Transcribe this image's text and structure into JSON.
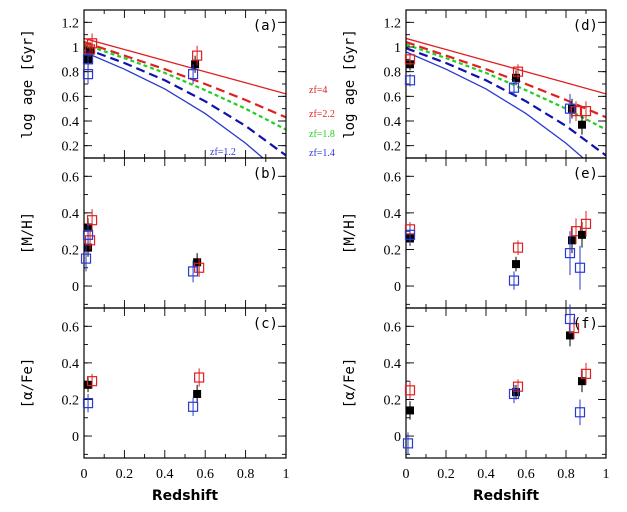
{
  "chart_data": {
    "type": "scatter",
    "colors": {
      "black": "#000000",
      "red": "#e02020",
      "blue": "#2a3ad0",
      "green": "#20d020",
      "darkblue": "#1010b0"
    },
    "xlabel": "Redshift",
    "xlim": [
      0,
      1
    ],
    "xticks": [
      0,
      0.2,
      0.4,
      0.6,
      0.8,
      1
    ],
    "xtick_labels": [
      "0",
      "0.2",
      "0.4",
      "0.6",
      "0.8",
      "1"
    ],
    "legend_series": [
      {
        "name": "filled black squares",
        "marker": "filled-square",
        "color": "black"
      },
      {
        "name": "open red squares",
        "marker": "open-square",
        "color": "red"
      },
      {
        "name": "open blue squares",
        "marker": "open-square",
        "color": "blue"
      }
    ],
    "rows": [
      {
        "key": "age",
        "ylabel": "log age [Gyr]",
        "ylim": [
          0.1,
          1.3
        ],
        "yticks": [
          0.2,
          0.4,
          0.6,
          0.8,
          1,
          1.2
        ],
        "ytick_labels": [
          "0.2",
          "0.4",
          "0.6",
          "0.8",
          "1",
          "1.2"
        ]
      },
      {
        "key": "mh",
        "ylabel": "[M/H]",
        "ylim": [
          -0.12,
          0.7
        ],
        "yticks": [
          0,
          0.2,
          0.4,
          0.6
        ],
        "ytick_labels": [
          "0",
          "0.2",
          "0.4",
          "0.6"
        ]
      },
      {
        "key": "afe",
        "ylabel": "[α/Fe]",
        "ylim": [
          -0.12,
          0.7
        ],
        "yticks": [
          0,
          0.2,
          0.4,
          0.6
        ],
        "ytick_labels": [
          "0",
          "0.2",
          "0.4",
          "0.6"
        ]
      }
    ],
    "formation_curves": [
      {
        "label": "z_f=4",
        "color": "red",
        "style": "solid",
        "values": [
          [
            0,
            1.07
          ],
          [
            0.2,
            0.98
          ],
          [
            0.4,
            0.89
          ],
          [
            0.6,
            0.8
          ],
          [
            0.8,
            0.71
          ],
          [
            1.0,
            0.62
          ]
        ]
      },
      {
        "label": "z_f=2.2",
        "color": "red",
        "style": "dashed",
        "values": [
          [
            0,
            1.04
          ],
          [
            0.2,
            0.93
          ],
          [
            0.4,
            0.82
          ],
          [
            0.6,
            0.7
          ],
          [
            0.8,
            0.57
          ],
          [
            1.0,
            0.43
          ]
        ]
      },
      {
        "label": "z_f=1.8",
        "color": "green",
        "style": "dashed",
        "values": [
          [
            0,
            1.02
          ],
          [
            0.2,
            0.91
          ],
          [
            0.4,
            0.79
          ],
          [
            0.6,
            0.65
          ],
          [
            0.8,
            0.5
          ],
          [
            1.0,
            0.33
          ]
        ]
      },
      {
        "label": "z_f=1.4",
        "color": "darkblue",
        "style": "dashed",
        "values": [
          [
            0,
            0.99
          ],
          [
            0.2,
            0.87
          ],
          [
            0.4,
            0.73
          ],
          [
            0.6,
            0.56
          ],
          [
            0.8,
            0.36
          ],
          [
            1.0,
            0.12
          ]
        ]
      },
      {
        "label": "z_f=1.2",
        "color": "blue",
        "style": "solid",
        "values": [
          [
            0,
            0.96
          ],
          [
            0.2,
            0.82
          ],
          [
            0.4,
            0.66
          ],
          [
            0.6,
            0.46
          ],
          [
            0.8,
            0.22
          ],
          [
            0.9,
            0.08
          ]
        ]
      }
    ],
    "curve_labels": [
      {
        "text": "zf=4",
        "color": "red"
      },
      {
        "text": "zf=2.2",
        "color": "red"
      },
      {
        "text": "zf=1.8",
        "color": "green"
      },
      {
        "text": "zf=1.4",
        "color": "blue"
      },
      {
        "text": "zf=1.2",
        "color": "blue"
      }
    ],
    "panels": [
      {
        "id": "a",
        "label": "(a)",
        "col": 0,
        "row": 0,
        "points": [
          {
            "series": "black",
            "x": 0.02,
            "y": 0.9,
            "err": 0.06
          },
          {
            "series": "black",
            "x": 0.03,
            "y": 0.97,
            "err": 0.07
          },
          {
            "series": "red",
            "x": 0.04,
            "y": 1.03,
            "err": 0.08
          },
          {
            "series": "red",
            "x": 0.03,
            "y": 0.98,
            "err": 0.06
          },
          {
            "series": "blue",
            "x": 0.02,
            "y": 0.78,
            "err": 0.08
          },
          {
            "series": "blue",
            "x": 0.02,
            "y": 0.9,
            "err": 0.07
          },
          {
            "series": "black",
            "x": 0.55,
            "y": 0.86,
            "err": 0.07
          },
          {
            "series": "red",
            "x": 0.56,
            "y": 0.93,
            "err": 0.08
          },
          {
            "series": "blue",
            "x": 0.54,
            "y": 0.78,
            "err": 0.08
          }
        ]
      },
      {
        "id": "b",
        "label": "(b)",
        "col": 0,
        "row": 1,
        "points": [
          {
            "series": "black",
            "x": 0.02,
            "y": 0.32,
            "err": 0.05
          },
          {
            "series": "black",
            "x": 0.02,
            "y": 0.21,
            "err": 0.05
          },
          {
            "series": "red",
            "x": 0.04,
            "y": 0.36,
            "err": 0.06
          },
          {
            "series": "red",
            "x": 0.03,
            "y": 0.25,
            "err": 0.05
          },
          {
            "series": "blue",
            "x": 0.01,
            "y": 0.15,
            "err": 0.07
          },
          {
            "series": "blue",
            "x": 0.02,
            "y": 0.28,
            "err": 0.06
          },
          {
            "series": "black",
            "x": 0.56,
            "y": 0.13,
            "err": 0.05
          },
          {
            "series": "red",
            "x": 0.57,
            "y": 0.1,
            "err": 0.05
          },
          {
            "series": "blue",
            "x": 0.54,
            "y": 0.08,
            "err": 0.06
          }
        ]
      },
      {
        "id": "c",
        "label": "(c)",
        "col": 0,
        "row": 2,
        "points": [
          {
            "series": "black",
            "x": 0.02,
            "y": 0.28,
            "err": 0.04
          },
          {
            "series": "red",
            "x": 0.04,
            "y": 0.3,
            "err": 0.04
          },
          {
            "series": "blue",
            "x": 0.02,
            "y": 0.18,
            "err": 0.05
          },
          {
            "series": "black",
            "x": 0.56,
            "y": 0.23,
            "err": 0.05
          },
          {
            "series": "red",
            "x": 0.57,
            "y": 0.32,
            "err": 0.05
          },
          {
            "series": "blue",
            "x": 0.54,
            "y": 0.16,
            "err": 0.05
          }
        ]
      },
      {
        "id": "d",
        "label": "(d)",
        "col": 1,
        "row": 0,
        "points": [
          {
            "series": "black",
            "x": 0.02,
            "y": 0.86,
            "err": 0.05
          },
          {
            "series": "red",
            "x": 0.02,
            "y": 0.9,
            "err": 0.05
          },
          {
            "series": "blue",
            "x": 0.02,
            "y": 0.73,
            "err": 0.05
          },
          {
            "series": "black",
            "x": 0.55,
            "y": 0.75,
            "err": 0.06
          },
          {
            "series": "red",
            "x": 0.56,
            "y": 0.8,
            "err": 0.06
          },
          {
            "series": "blue",
            "x": 0.54,
            "y": 0.67,
            "err": 0.07
          },
          {
            "series": "black",
            "x": 0.83,
            "y": 0.5,
            "err": 0.08
          },
          {
            "series": "red",
            "x": 0.85,
            "y": 0.48,
            "err": 0.08
          },
          {
            "series": "blue",
            "x": 0.82,
            "y": 0.5,
            "err": 0.12
          },
          {
            "series": "black",
            "x": 0.88,
            "y": 0.37,
            "err": 0.08
          },
          {
            "series": "red",
            "x": 0.9,
            "y": 0.48,
            "err": 0.08
          }
        ]
      },
      {
        "id": "e",
        "label": "(e)",
        "col": 1,
        "row": 1,
        "points": [
          {
            "series": "black",
            "x": 0.02,
            "y": 0.26,
            "err": 0.04
          },
          {
            "series": "red",
            "x": 0.02,
            "y": 0.31,
            "err": 0.04
          },
          {
            "series": "blue",
            "x": 0.02,
            "y": 0.28,
            "err": 0.05
          },
          {
            "series": "black",
            "x": 0.55,
            "y": 0.12,
            "err": 0.04
          },
          {
            "series": "red",
            "x": 0.56,
            "y": 0.21,
            "err": 0.04
          },
          {
            "series": "blue",
            "x": 0.54,
            "y": 0.03,
            "err": 0.05
          },
          {
            "series": "black",
            "x": 0.83,
            "y": 0.25,
            "err": 0.07
          },
          {
            "series": "red",
            "x": 0.85,
            "y": 0.3,
            "err": 0.07
          },
          {
            "series": "blue",
            "x": 0.82,
            "y": 0.18,
            "err": 0.12
          },
          {
            "series": "black",
            "x": 0.88,
            "y": 0.28,
            "err": 0.07
          },
          {
            "series": "red",
            "x": 0.9,
            "y": 0.34,
            "err": 0.07
          },
          {
            "series": "blue",
            "x": 0.87,
            "y": 0.1,
            "err": 0.12
          }
        ]
      },
      {
        "id": "f",
        "label": "(f)",
        "col": 1,
        "row": 2,
        "points": [
          {
            "series": "black",
            "x": 0.02,
            "y": 0.14,
            "err": 0.05
          },
          {
            "series": "red",
            "x": 0.02,
            "y": 0.25,
            "err": 0.05
          },
          {
            "series": "blue",
            "x": 0.01,
            "y": -0.04,
            "err": 0.06
          },
          {
            "series": "black",
            "x": 0.55,
            "y": 0.24,
            "err": 0.04
          },
          {
            "series": "red",
            "x": 0.56,
            "y": 0.27,
            "err": 0.04
          },
          {
            "series": "blue",
            "x": 0.54,
            "y": 0.23,
            "err": 0.05
          },
          {
            "series": "black",
            "x": 0.82,
            "y": 0.55,
            "err": 0.06
          },
          {
            "series": "red",
            "x": 0.84,
            "y": 0.59,
            "err": 0.06
          },
          {
            "series": "blue",
            "x": 0.82,
            "y": 0.64,
            "err": 0.08
          },
          {
            "series": "black",
            "x": 0.88,
            "y": 0.3,
            "err": 0.06
          },
          {
            "series": "red",
            "x": 0.9,
            "y": 0.34,
            "err": 0.06
          },
          {
            "series": "blue",
            "x": 0.87,
            "y": 0.13,
            "err": 0.07
          }
        ]
      }
    ]
  }
}
